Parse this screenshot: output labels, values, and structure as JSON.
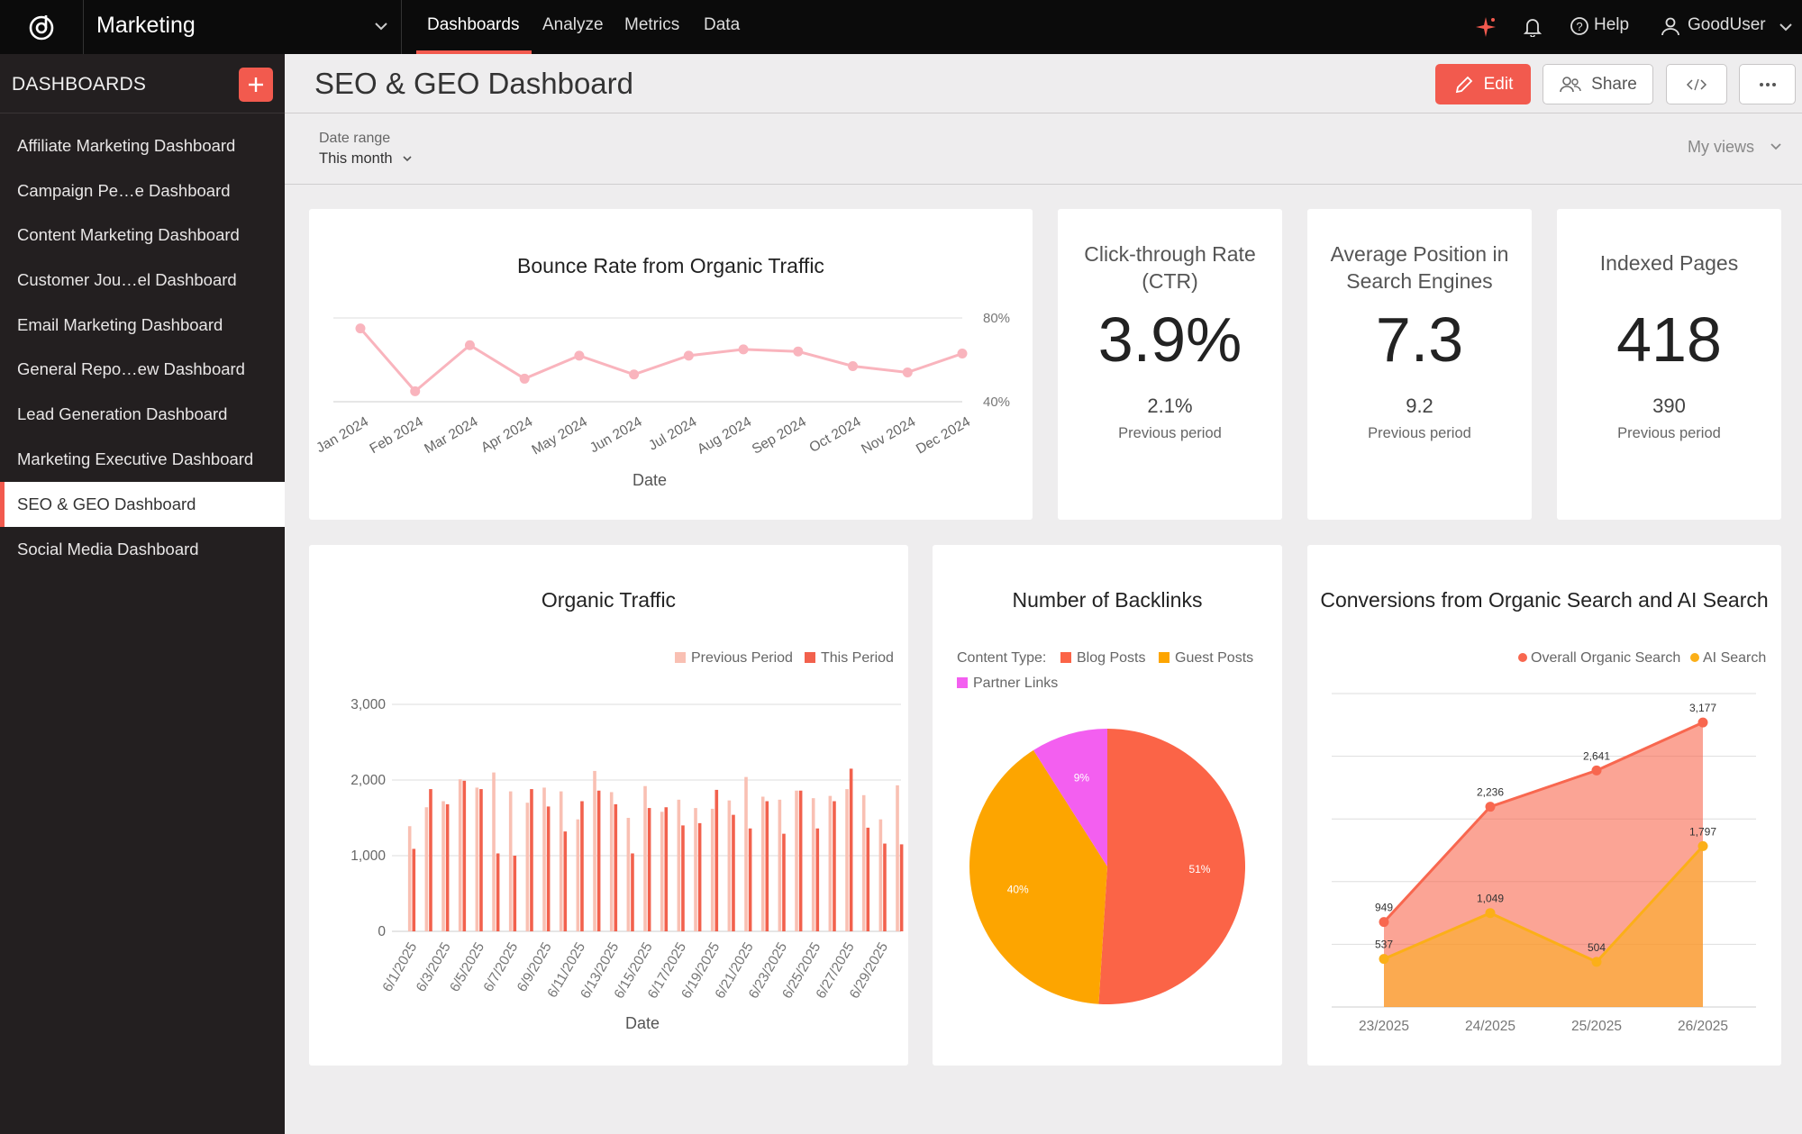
{
  "topbar": {
    "app_name": "Marketing",
    "tabs": [
      "Dashboards",
      "Analyze",
      "Metrics",
      "Data"
    ],
    "help_label": "Help",
    "user_label": "GoodUser"
  },
  "sidebar": {
    "title": "DASHBOARDS",
    "items": [
      "Affiliate Marketing Dashboard",
      "Campaign Pe…e Dashboard",
      "Content Marketing Dashboard",
      "Customer Jou…el Dashboard",
      "Email Marketing Dashboard",
      "General Repo…ew Dashboard",
      "Lead Generation Dashboard",
      "Marketing Executive Dashboard",
      "SEO & GEO Dashboard",
      "Social Media Dashboard"
    ],
    "active_index": 8
  },
  "header": {
    "title": "SEO & GEO Dashboard",
    "edit_label": "Edit",
    "share_label": "Share"
  },
  "filters": {
    "date_range_label": "Date range",
    "date_range_value": "This month",
    "my_views_label": "My views"
  },
  "kpis": [
    {
      "title": "Click-through Rate (CTR)",
      "value": "3.9%",
      "previous": "2.1%",
      "previous_label": "Previous period"
    },
    {
      "title": "Average Position in Search Engines",
      "value": "7.3",
      "previous": "9.2",
      "previous_label": "Previous period"
    },
    {
      "title": "Indexed Pages",
      "value": "418",
      "previous": "390",
      "previous_label": "Previous period"
    }
  ],
  "colors": {
    "accent": "#f25a4e",
    "bounce_line": "#f9b4bd",
    "prev_period": "#f9c0b3",
    "this_period": "#f2614d",
    "blog": "#fb6447",
    "guest": "#fda500",
    "partner": "#f35ff0",
    "organic": "#f8674f",
    "ai": "#fbaf18"
  },
  "chart_data": [
    {
      "id": "bounce",
      "type": "line",
      "title": "Bounce Rate from Organic Traffic",
      "xlabel": "Date",
      "ylabel": "",
      "categories": [
        "Jan 2024",
        "Feb 2024",
        "Mar 2024",
        "Apr 2024",
        "May 2024",
        "Jun 2024",
        "Jul 2024",
        "Aug 2024",
        "Sep 2024",
        "Oct 2024",
        "Nov 2024",
        "Dec 2024"
      ],
      "category_labels": [
        "Jan 2024",
        "Feb 2024",
        "Mar 2024",
        "Apr 2024",
        "May 2024",
        "Jun 2024",
        "Jul 2024",
        "Aug 2024",
        "Sep 2024",
        "Oct 2024",
        "Nov 2024",
        "Dec 2024"
      ],
      "values": [
        75,
        45,
        67,
        51,
        62,
        53,
        62,
        65,
        64,
        57,
        54,
        63
      ],
      "yticks": [
        "80%",
        "40%"
      ],
      "ylim": [
        40,
        80
      ]
    },
    {
      "id": "organic",
      "type": "bar",
      "title": "Organic Traffic",
      "xlabel": "Date",
      "legend": [
        "Previous Period",
        "This Period"
      ],
      "yticks": [
        "3,000",
        "2,000",
        "1,000",
        "0"
      ],
      "ylim": [
        0,
        3000
      ],
      "categories": [
        "6/1/2025",
        "6/2/2025",
        "6/3/2025",
        "6/4/2025",
        "6/5/2025",
        "6/6/2025",
        "6/7/2025",
        "6/8/2025",
        "6/9/2025",
        "6/10/2025",
        "6/11/2025",
        "6/12/2025",
        "6/13/2025",
        "6/14/2025",
        "6/15/2025",
        "6/16/2025",
        "6/17/2025",
        "6/18/2025",
        "6/19/2025",
        "6/20/2025",
        "6/21/2025",
        "6/22/2025",
        "6/23/2025",
        "6/24/2025",
        "6/25/2025",
        "6/26/2025",
        "6/27/2025",
        "6/28/2025",
        "6/29/2025",
        "6/30/2025"
      ],
      "tick_labels": [
        "6/1/2025",
        "6/3/2025",
        "6/5/2025",
        "6/7/2025",
        "6/9/2025",
        "6/11/2025",
        "6/13/2025",
        "6/15/2025",
        "6/17/2025",
        "6/19/2025",
        "6/21/2025",
        "6/23/2025",
        "6/25/2025",
        "6/27/2025",
        "6/29/2025"
      ],
      "series": [
        {
          "name": "Previous Period",
          "values": [
            1390,
            1640,
            1720,
            2010,
            1900,
            2100,
            1850,
            1700,
            1900,
            1850,
            1480,
            2120,
            1840,
            1500,
            1920,
            1580,
            1740,
            1630,
            1620,
            1730,
            2040,
            1780,
            1740,
            1860,
            1760,
            1790,
            1880,
            1800,
            1480,
            1930
          ]
        },
        {
          "name": "This Period",
          "values": [
            1090,
            1880,
            1680,
            1990,
            1880,
            1030,
            1000,
            1880,
            1650,
            1320,
            1720,
            1860,
            1680,
            1030,
            1630,
            1640,
            1400,
            1430,
            1870,
            1540,
            1360,
            1720,
            1290,
            1860,
            1360,
            1720,
            2150,
            1370,
            1160,
            1150
          ]
        }
      ]
    },
    {
      "id": "backlinks",
      "type": "pie",
      "title": "Number of Backlinks",
      "legend_title": "Content Type:",
      "labels": [
        "Blog Posts",
        "Guest Posts",
        "Partner Links"
      ],
      "values": [
        51,
        40,
        9
      ],
      "value_labels": [
        "51%",
        "40%",
        "9%"
      ]
    },
    {
      "id": "conversions",
      "type": "area",
      "title": "Conversions from Organic Search and AI Search",
      "categories": [
        "23/2025",
        "24/2025",
        "25/2025",
        "26/2025"
      ],
      "ylim": [
        0,
        3500
      ],
      "series": [
        {
          "name": "Overall Organic Search",
          "values": [
            949,
            2236,
            2641,
            3177
          ],
          "labels": [
            "949",
            "2,236",
            "2,641",
            "3,177"
          ]
        },
        {
          "name": "AI Search",
          "values": [
            537,
            1049,
            504,
            1797
          ],
          "labels": [
            "537",
            "1,049",
            "504",
            "1,797"
          ]
        }
      ]
    }
  ]
}
